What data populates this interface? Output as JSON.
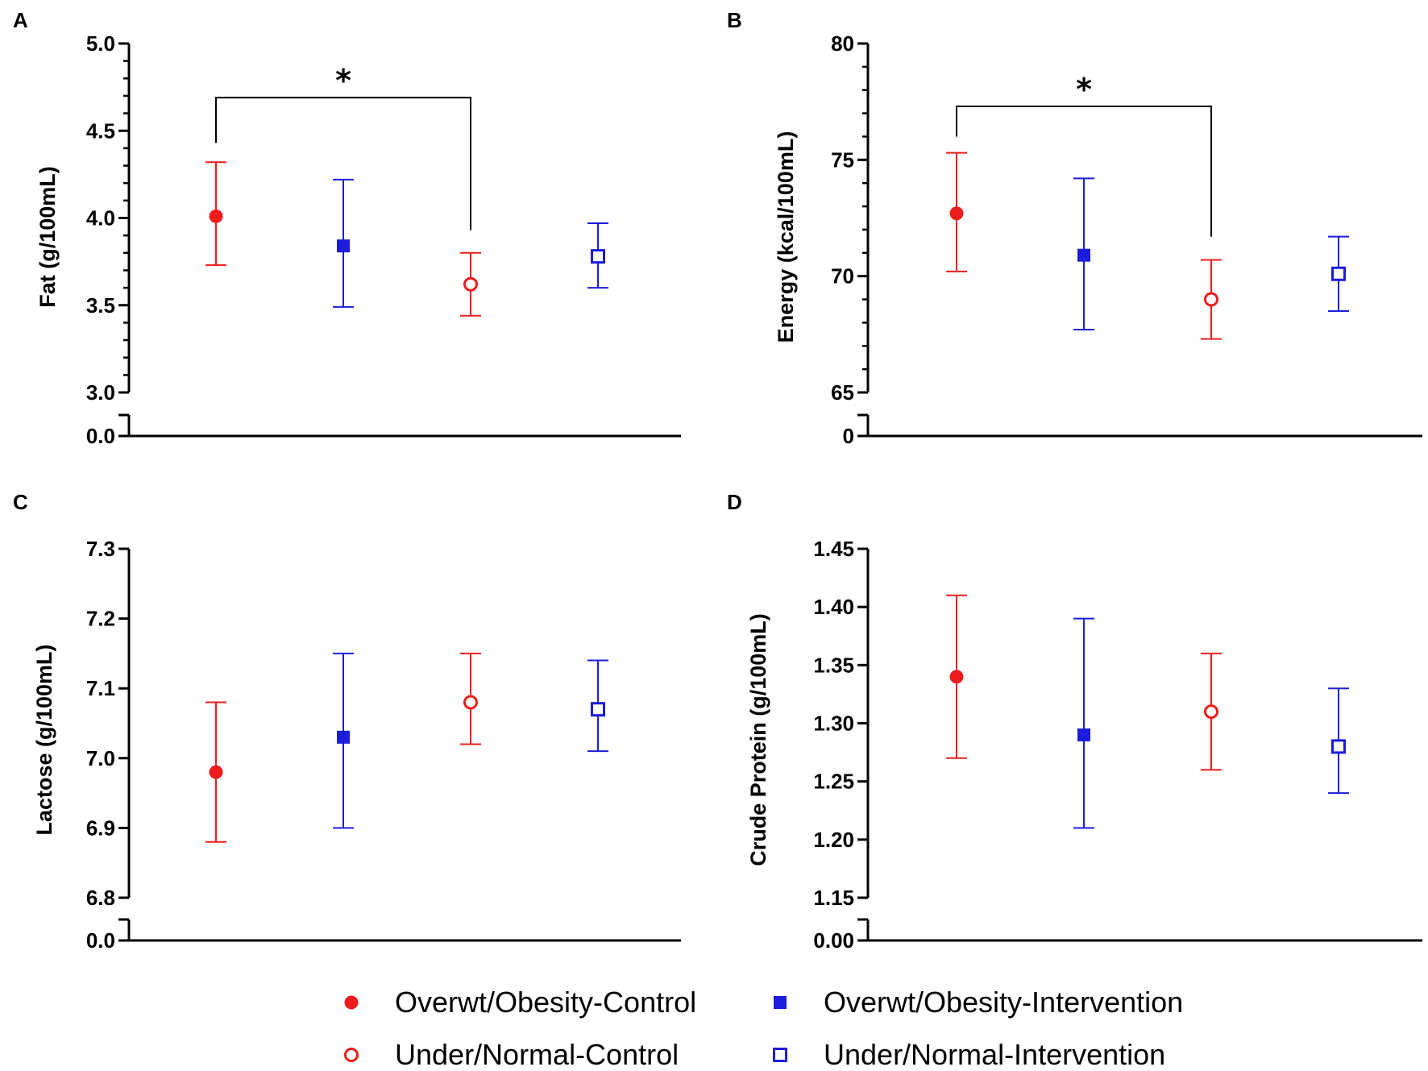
{
  "chart_data": [
    {
      "type": "scatter",
      "panel": "A",
      "ylabel": "Fat (g/100mL)",
      "ylim": [
        3.0,
        5.0
      ],
      "yticks": [
        "3.0",
        "3.5",
        "4.0",
        "4.5",
        "5.0"
      ],
      "yticks_values": [
        3.0,
        3.5,
        4.0,
        4.5,
        5.0
      ],
      "minor_step": 0.1,
      "break_label": "0.0",
      "series": [
        {
          "name": "Overwt/Obesity-Control",
          "mean": 4.01,
          "lower": 3.73,
          "upper": 4.32
        },
        {
          "name": "Overwt/Obesity-Intervention",
          "mean": 3.84,
          "lower": 3.49,
          "upper": 4.22
        },
        {
          "name": "Under/Normal-Control",
          "mean": 3.62,
          "lower": 3.44,
          "upper": 3.8
        },
        {
          "name": "Under/Normal-Intervention",
          "mean": 3.78,
          "lower": 3.6,
          "upper": 3.97
        }
      ],
      "significance": {
        "from": 0,
        "to": 2,
        "label": "*",
        "bracket_y": 4.69,
        "left_y": 4.43,
        "right_y": 3.93
      }
    },
    {
      "type": "scatter",
      "panel": "B",
      "ylabel": "Energy (kcal/100mL)",
      "ylim": [
        65,
        80
      ],
      "yticks": [
        "65",
        "70",
        "75",
        "80"
      ],
      "yticks_values": [
        65,
        70,
        75,
        80
      ],
      "minor_step": 1,
      "break_label": "0",
      "series": [
        {
          "name": "Overwt/Obesity-Control",
          "mean": 72.7,
          "lower": 70.2,
          "upper": 75.3
        },
        {
          "name": "Overwt/Obesity-Intervention",
          "mean": 70.9,
          "lower": 67.7,
          "upper": 74.2
        },
        {
          "name": "Under/Normal-Control",
          "mean": 69.0,
          "lower": 67.3,
          "upper": 70.7
        },
        {
          "name": "Under/Normal-Intervention",
          "mean": 70.1,
          "lower": 68.5,
          "upper": 71.7
        }
      ],
      "significance": {
        "from": 0,
        "to": 2,
        "label": "*",
        "bracket_y": 77.3,
        "left_y": 76.0,
        "right_y": 71.7
      }
    },
    {
      "type": "scatter",
      "panel": "C",
      "ylabel": "Lactose (g/100mL)",
      "ylim": [
        6.8,
        7.3
      ],
      "yticks": [
        "6.8",
        "6.9",
        "7.0",
        "7.1",
        "7.2",
        "7.3"
      ],
      "yticks_values": [
        6.8,
        6.9,
        7.0,
        7.1,
        7.2,
        7.3
      ],
      "minor_step": null,
      "break_label": "0.0",
      "series": [
        {
          "name": "Overwt/Obesity-Control",
          "mean": 6.98,
          "lower": 6.88,
          "upper": 7.08
        },
        {
          "name": "Overwt/Obesity-Intervention",
          "mean": 7.03,
          "lower": 6.9,
          "upper": 7.15
        },
        {
          "name": "Under/Normal-Control",
          "mean": 7.08,
          "lower": 7.02,
          "upper": 7.15
        },
        {
          "name": "Under/Normal-Intervention",
          "mean": 7.07,
          "lower": 7.01,
          "upper": 7.14
        }
      ]
    },
    {
      "type": "scatter",
      "panel": "D",
      "ylabel": "Crude Protein (g/100mL)",
      "ylim": [
        1.15,
        1.45
      ],
      "yticks": [
        "1.15",
        "1.20",
        "1.25",
        "1.30",
        "1.35",
        "1.40",
        "1.45"
      ],
      "yticks_values": [
        1.15,
        1.2,
        1.25,
        1.3,
        1.35,
        1.4,
        1.45
      ],
      "minor_step": null,
      "break_label": "0.00",
      "series": [
        {
          "name": "Overwt/Obesity-Control",
          "mean": 1.34,
          "lower": 1.27,
          "upper": 1.41
        },
        {
          "name": "Overwt/Obesity-Intervention",
          "mean": 1.29,
          "lower": 1.21,
          "upper": 1.39
        },
        {
          "name": "Under/Normal-Control",
          "mean": 1.31,
          "lower": 1.26,
          "upper": 1.36
        },
        {
          "name": "Under/Normal-Intervention",
          "mean": 1.28,
          "lower": 1.24,
          "upper": 1.33
        }
      ]
    }
  ],
  "legend": [
    {
      "label": "Overwt/Obesity-Control",
      "marker": "filled-circle",
      "color": "#ee1c1c"
    },
    {
      "label": "Overwt/Obesity-Intervention",
      "marker": "filled-square",
      "color": "#1c1cdd"
    },
    {
      "label": "Under/Normal-Control",
      "marker": "open-circle",
      "color": "#ee1c1c"
    },
    {
      "label": "Under/Normal-Intervention",
      "marker": "open-square",
      "color": "#1c1cdd"
    }
  ],
  "colors": {
    "red": "#ee1c1c",
    "blue": "#1c1cdd",
    "axis": "#000000"
  }
}
